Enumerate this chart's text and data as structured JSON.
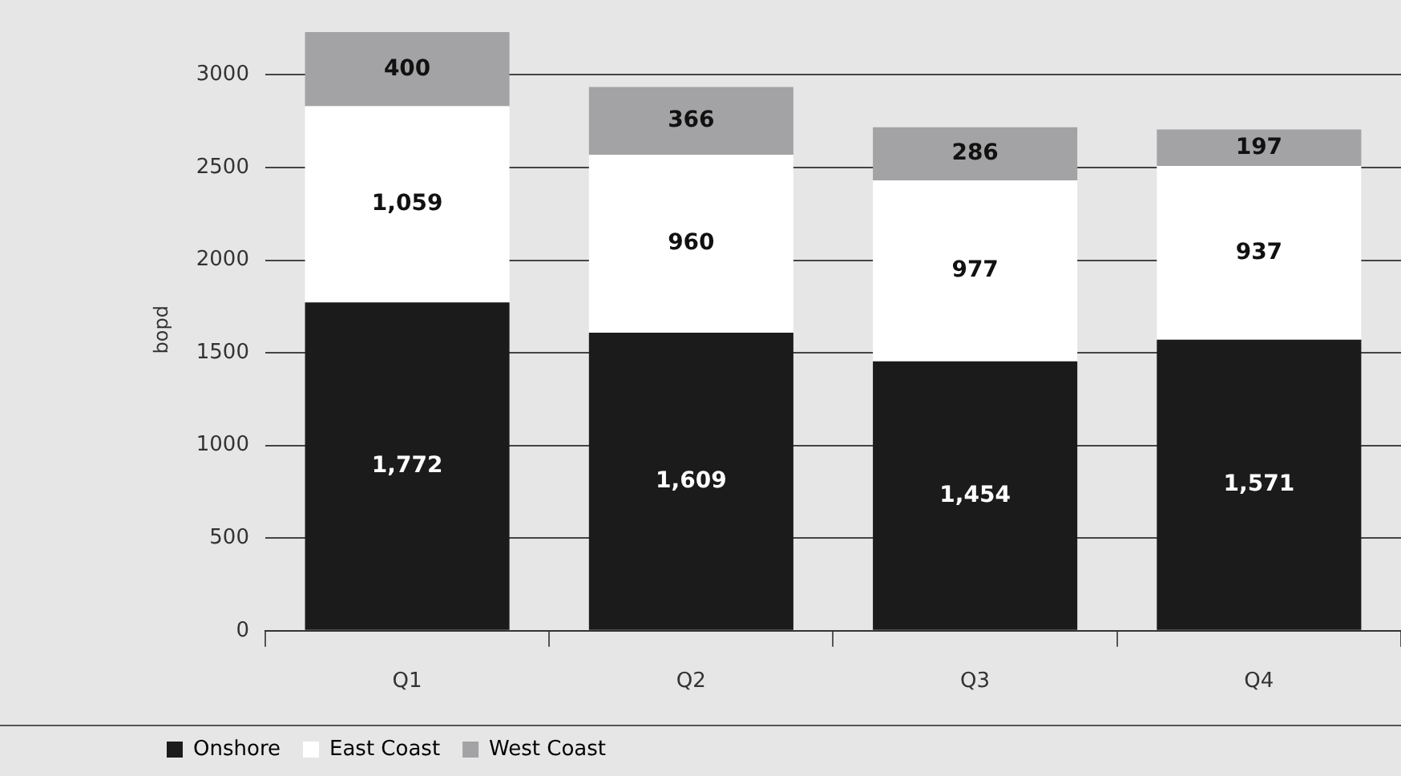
{
  "chart_data": {
    "type": "bar",
    "stacked": true,
    "ylabel": "bopd",
    "categories": [
      "Q1",
      "Q2",
      "Q3",
      "Q4"
    ],
    "series": [
      {
        "name": "Onshore",
        "color": "#1b1b1b",
        "values": [
          1772,
          1609,
          1454,
          1571
        ],
        "value_labels": [
          "1,772",
          "1,609",
          "1,454",
          "1,571"
        ]
      },
      {
        "name": "East Coast",
        "color": "#ffffff",
        "values": [
          1059,
          960,
          977,
          937
        ],
        "value_labels": [
          "1,059",
          "960",
          "977",
          "937"
        ]
      },
      {
        "name": "West Coast",
        "color": "#a3a3a5",
        "values": [
          400,
          366,
          286,
          197
        ],
        "value_labels": [
          "400",
          "366",
          "286",
          "197"
        ]
      }
    ],
    "ylim": [
      0,
      3250
    ],
    "yticks": [
      0,
      500,
      1000,
      1500,
      2000,
      2500,
      3000
    ],
    "grid": "y",
    "legend": "bottom left"
  }
}
